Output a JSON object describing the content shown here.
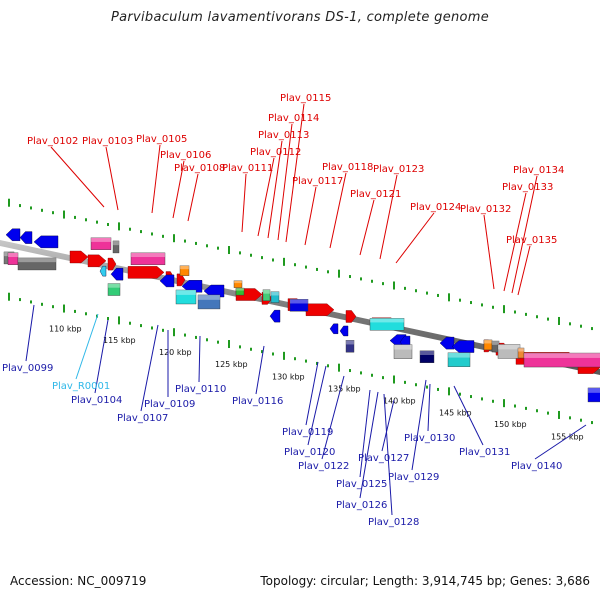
{
  "title": "Parvibaculum lavamentivorans DS-1, complete genome",
  "footer": {
    "accession": "Accession: NC_009719",
    "summary": "Topology: circular; Length: 3,914,745 bp; Genes: 3,686"
  },
  "colors": {
    "top_label": "#dd0000",
    "bottom_label": "#1a1aa8",
    "rna_label": "#2fb8e8",
    "backbone": "#8a8a8a",
    "tick": "#1f9a1f"
  },
  "ticks": [
    "110 kbp",
    "115 kbp",
    "120 kbp",
    "125 kbp",
    "130 kbp",
    "135 kbp",
    "140 kbp",
    "145 kbp",
    "150 kbp",
    "155 kbp"
  ],
  "top_labels": [
    "Plav_0102",
    "Plav_0103",
    "Plav_0105",
    "Plav_0106",
    "Plav_0108",
    "Plav_0111",
    "Plav_0112",
    "Plav_0113",
    "Plav_0114",
    "Plav_0115",
    "Plav_0117",
    "Plav_0118",
    "Plav_0121",
    "Plav_0123",
    "Plav_0124",
    "Plav_0132",
    "Plav_0133",
    "Plav_0134",
    "Plav_0135"
  ],
  "bottom_labels": [
    "Plav_0099",
    "Plav_R0001",
    "Plav_0104",
    "Plav_0107",
    "Plav_0109",
    "Plav_0110",
    "Plav_0116",
    "Plav_0119",
    "Plav_0120",
    "Plav_0122",
    "Plav_0125",
    "Plav_0126",
    "Plav_0127",
    "Plav_0128",
    "Plav_0129",
    "Plav_0130",
    "Plav_0131",
    "Plav_0140"
  ]
}
